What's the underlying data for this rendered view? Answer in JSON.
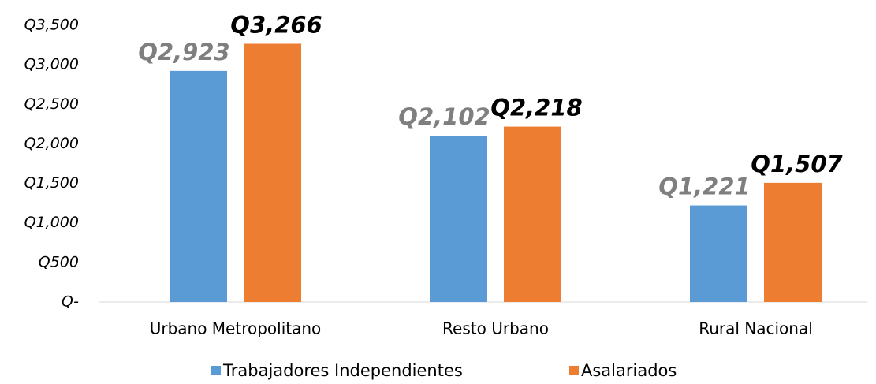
{
  "chart_data": {
    "type": "bar",
    "categories": [
      "Urbano Metropolitano",
      "Resto Urbano",
      "Rural Nacional"
    ],
    "series": [
      {
        "name": "Trabajadores Independientes",
        "color": "#5b9bd5",
        "values": [
          2923,
          2102,
          1221
        ],
        "value_labels": [
          "Q2,923",
          "Q2,102",
          "Q1,221"
        ]
      },
      {
        "name": "Asalariados",
        "color": "#ed7d31",
        "values": [
          3266,
          2218,
          1507
        ],
        "value_labels": [
          "Q3,266",
          "Q2,218",
          "Q1,507"
        ]
      }
    ],
    "ylim": [
      0,
      3500
    ],
    "yticks": [
      {
        "value": 0,
        "label": "Q-"
      },
      {
        "value": 500,
        "label": "Q500"
      },
      {
        "value": 1000,
        "label": "Q1,000"
      },
      {
        "value": 1500,
        "label": "Q1,500"
      },
      {
        "value": 2000,
        "label": "Q2,000"
      },
      {
        "value": 2500,
        "label": "Q2,500"
      },
      {
        "value": 3000,
        "label": "Q3,000"
      },
      {
        "value": 3500,
        "label": "Q3,500"
      }
    ],
    "grid": false,
    "legend": "bottom"
  }
}
